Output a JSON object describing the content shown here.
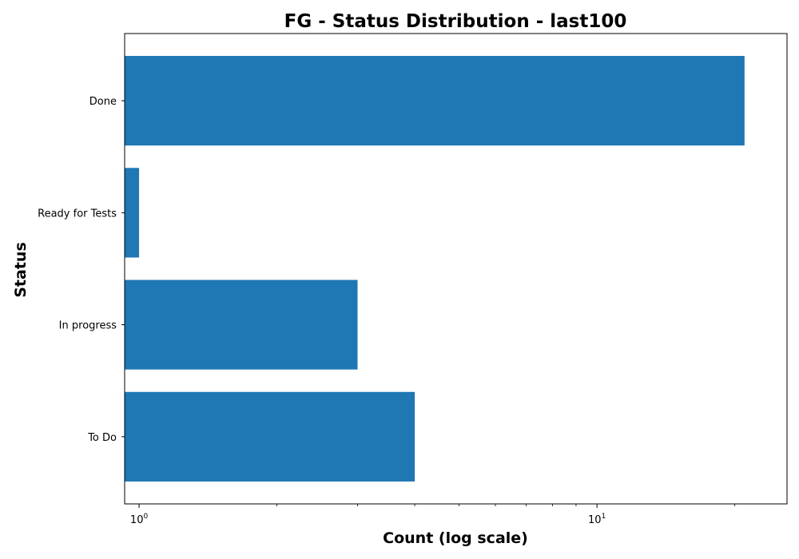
{
  "chart_data": {
    "type": "bar",
    "orientation": "horizontal",
    "title": "FG - Status Distribution - last100",
    "xlabel": "Count (log scale)",
    "ylabel": "Status",
    "x_scale": "log",
    "xlim": [
      0.93,
      26
    ],
    "categories": [
      "Done",
      "Ready for Tests",
      "In progress",
      "To Do"
    ],
    "values": [
      21,
      1,
      3,
      4
    ],
    "x_ticks": [
      {
        "value": 1,
        "base": "10",
        "exp": "0"
      },
      {
        "value": 10,
        "base": "10",
        "exp": "1"
      }
    ],
    "grid": false,
    "legend": "none",
    "colors": {
      "bar": "#1f77b4",
      "axis": "#000000",
      "background": "#ffffff"
    }
  }
}
